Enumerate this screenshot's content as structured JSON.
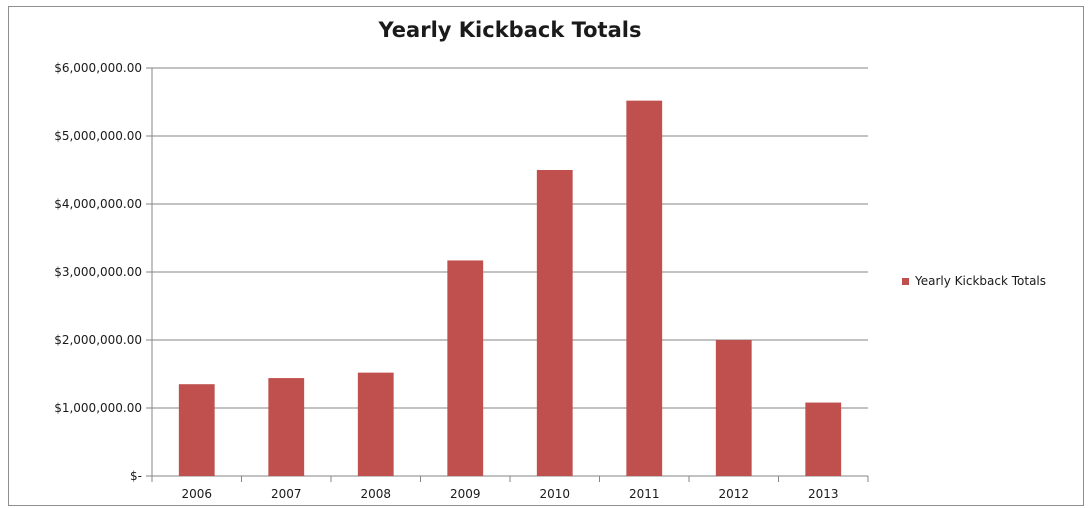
{
  "chart_data": {
    "type": "bar",
    "title": "Yearly Kickback Totals",
    "xlabel": "",
    "ylabel": "",
    "categories": [
      "2006",
      "2007",
      "2008",
      "2009",
      "2010",
      "2011",
      "2012",
      "2013"
    ],
    "series": [
      {
        "name": "Yearly Kickback Totals",
        "values": [
          1350000,
          1440000,
          1520000,
          3170000,
          4500000,
          5520000,
          2000000,
          1080000
        ]
      }
    ],
    "ylim": [
      0,
      6000000
    ],
    "yticks": [
      0,
      1000000,
      2000000,
      3000000,
      4000000,
      5000000,
      6000000
    ],
    "ytick_labels": [
      "$-",
      "$1,000,000.00",
      "$2,000,000.00",
      "$3,000,000.00",
      "$4,000,000.00",
      "$5,000,000.00",
      "$6,000,000.00"
    ],
    "grid": true,
    "legend_position": "right",
    "colors": {
      "bar": "#c0504d",
      "grid": "#868686",
      "axis": "#868686",
      "text": "#1a1a1a"
    }
  }
}
